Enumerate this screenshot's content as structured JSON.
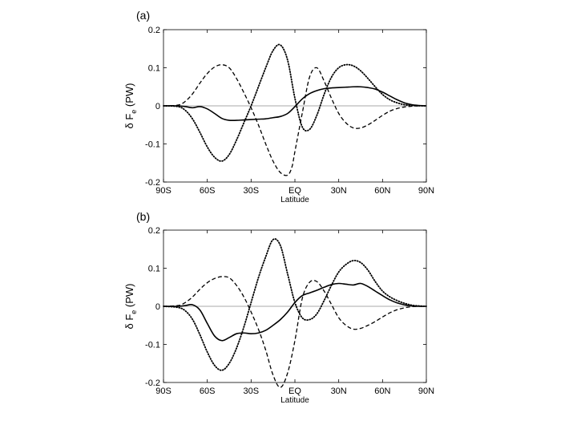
{
  "chart_data": [
    {
      "type": "line",
      "panel_label": "(a)",
      "xlabel": "Latitude",
      "ylabel": "δ F",
      "ylabel_subscript": "e",
      "ylabel_unit": " (PW)",
      "xlim": [
        -90,
        90
      ],
      "ylim": [
        -0.2,
        0.2
      ],
      "xticks": [
        -90,
        -60,
        -30,
        0,
        30,
        60,
        90
      ],
      "xtick_labels": [
        "90S",
        "60S",
        "30S",
        "EQ",
        "30N",
        "60N",
        "90N"
      ],
      "yticks": [
        -0.2,
        -0.1,
        0,
        0.1,
        0.2
      ],
      "ytick_labels": [
        "-0.2",
        "-0.1",
        "0",
        "0.1",
        "0.2"
      ],
      "grid": false,
      "zero_line": true,
      "series": [
        {
          "style": "solid",
          "x": [
            -90,
            -80,
            -75,
            -70,
            -65,
            -60,
            -55,
            -50,
            -45,
            -40,
            -35,
            -30,
            -25,
            -20,
            -15,
            -10,
            -5,
            0,
            5,
            10,
            15,
            20,
            25,
            30,
            35,
            40,
            45,
            50,
            55,
            60,
            65,
            70,
            75,
            80,
            85,
            90
          ],
          "y": [
            0,
            0,
            -0.002,
            -0.005,
            -0.002,
            -0.008,
            -0.02,
            -0.033,
            -0.038,
            -0.038,
            -0.037,
            -0.036,
            -0.035,
            -0.034,
            -0.031,
            -0.028,
            -0.02,
            -0.002,
            0.018,
            0.032,
            0.04,
            0.045,
            0.047,
            0.048,
            0.049,
            0.05,
            0.05,
            0.048,
            0.044,
            0.036,
            0.026,
            0.016,
            0.008,
            0.003,
            0.001,
            0
          ]
        },
        {
          "style": "dashed",
          "x": [
            -90,
            -80,
            -75,
            -70,
            -65,
            -60,
            -55,
            -50,
            -45,
            -40,
            -35,
            -30,
            -25,
            -20,
            -15,
            -10,
            -5,
            -2,
            0,
            5,
            10,
            15,
            20,
            25,
            30,
            35,
            40,
            45,
            50,
            55,
            60,
            65,
            70,
            75,
            80,
            85,
            90
          ],
          "y": [
            0,
            0.002,
            0.012,
            0.032,
            0.06,
            0.085,
            0.102,
            0.108,
            0.1,
            0.072,
            0.035,
            -0.005,
            -0.05,
            -0.1,
            -0.145,
            -0.175,
            -0.182,
            -0.16,
            -0.12,
            -0.02,
            0.075,
            0.1,
            0.065,
            0.02,
            -0.02,
            -0.045,
            -0.058,
            -0.058,
            -0.05,
            -0.038,
            -0.025,
            -0.014,
            -0.007,
            -0.003,
            -0.001,
            0,
            0
          ]
        },
        {
          "style": "dotted",
          "x": [
            -90,
            -80,
            -75,
            -70,
            -65,
            -60,
            -55,
            -50,
            -45,
            -40,
            -35,
            -30,
            -25,
            -20,
            -15,
            -10,
            -5,
            0,
            5,
            10,
            15,
            20,
            25,
            30,
            35,
            40,
            45,
            50,
            55,
            60,
            65,
            70,
            75,
            80,
            85,
            90
          ],
          "y": [
            0,
            -0.002,
            -0.012,
            -0.035,
            -0.07,
            -0.108,
            -0.135,
            -0.145,
            -0.128,
            -0.09,
            -0.045,
            0,
            0.05,
            0.1,
            0.145,
            0.16,
            0.12,
            0.02,
            -0.055,
            -0.062,
            -0.025,
            0.03,
            0.075,
            0.1,
            0.108,
            0.105,
            0.092,
            0.072,
            0.05,
            0.03,
            0.016,
            0.008,
            0.003,
            0.001,
            0,
            0
          ]
        }
      ]
    },
    {
      "type": "line",
      "panel_label": "(b)",
      "xlabel": "Latitude",
      "ylabel": "δ F",
      "ylabel_subscript": "e",
      "ylabel_unit": " (PW)",
      "xlim": [
        -90,
        90
      ],
      "ylim": [
        -0.2,
        0.2
      ],
      "xticks": [
        -90,
        -60,
        -30,
        0,
        30,
        60,
        90
      ],
      "xtick_labels": [
        "90S",
        "60S",
        "30S",
        "EQ",
        "30N",
        "60N",
        "90N"
      ],
      "yticks": [
        -0.2,
        -0.1,
        0,
        0.1,
        0.2
      ],
      "ytick_labels": [
        "-0.2",
        "-0.1",
        "0",
        "0.1",
        "0.2"
      ],
      "grid": false,
      "zero_line": true,
      "series": [
        {
          "style": "solid",
          "x": [
            -90,
            -80,
            -75,
            -70,
            -65,
            -60,
            -55,
            -50,
            -45,
            -40,
            -35,
            -30,
            -25,
            -20,
            -15,
            -10,
            -5,
            0,
            5,
            10,
            15,
            20,
            25,
            30,
            35,
            40,
            45,
            50,
            55,
            60,
            65,
            70,
            75,
            80,
            85,
            90
          ],
          "y": [
            0,
            0,
            0.002,
            0.004,
            -0.01,
            -0.045,
            -0.078,
            -0.09,
            -0.082,
            -0.072,
            -0.07,
            -0.072,
            -0.07,
            -0.063,
            -0.05,
            -0.035,
            -0.015,
            0.01,
            0.028,
            0.035,
            0.042,
            0.05,
            0.057,
            0.06,
            0.058,
            0.056,
            0.06,
            0.052,
            0.04,
            0.028,
            0.017,
            0.009,
            0.004,
            0.001,
            0,
            0
          ]
        },
        {
          "style": "dashed",
          "x": [
            -90,
            -80,
            -75,
            -70,
            -65,
            -60,
            -55,
            -50,
            -45,
            -40,
            -35,
            -30,
            -25,
            -20,
            -15,
            -10,
            -5,
            0,
            5,
            10,
            15,
            20,
            25,
            30,
            35,
            40,
            45,
            50,
            55,
            60,
            65,
            70,
            75,
            80,
            85,
            90
          ],
          "y": [
            0,
            0.002,
            0.01,
            0.025,
            0.045,
            0.062,
            0.073,
            0.078,
            0.075,
            0.055,
            0.025,
            -0.015,
            -0.06,
            -0.115,
            -0.18,
            -0.213,
            -0.175,
            -0.09,
            0.02,
            0.063,
            0.065,
            0.04,
            0.005,
            -0.03,
            -0.05,
            -0.06,
            -0.058,
            -0.05,
            -0.04,
            -0.028,
            -0.017,
            -0.009,
            -0.004,
            -0.001,
            0,
            0
          ]
        },
        {
          "style": "dotted",
          "x": [
            -90,
            -80,
            -75,
            -70,
            -65,
            -60,
            -55,
            -50,
            -45,
            -40,
            -35,
            -30,
            -25,
            -20,
            -15,
            -10,
            -5,
            0,
            5,
            10,
            15,
            20,
            25,
            30,
            35,
            40,
            45,
            50,
            55,
            60,
            65,
            70,
            75,
            80,
            85,
            90
          ],
          "y": [
            0,
            -0.003,
            -0.012,
            -0.035,
            -0.075,
            -0.12,
            -0.155,
            -0.168,
            -0.15,
            -0.11,
            -0.055,
            0.01,
            0.075,
            0.13,
            0.175,
            0.16,
            0.085,
            0.01,
            -0.03,
            -0.035,
            -0.02,
            0.015,
            0.055,
            0.09,
            0.11,
            0.12,
            0.115,
            0.095,
            0.065,
            0.04,
            0.025,
            0.015,
            0.008,
            0.003,
            0.001,
            0
          ]
        }
      ]
    }
  ]
}
